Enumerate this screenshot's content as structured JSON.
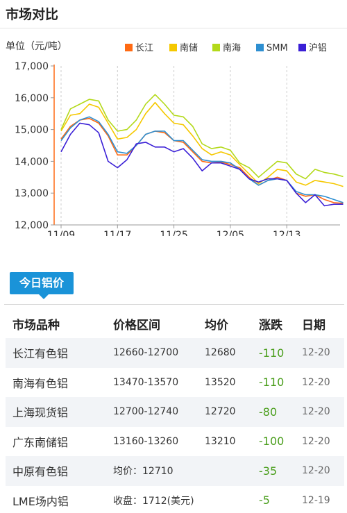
{
  "page": {
    "section_title": "市场对比",
    "today_tab": "今日铝价"
  },
  "chart_data": {
    "type": "line",
    "ylabel": "单位（元/吨）",
    "ylim": [
      12000,
      17000
    ],
    "yticks": [
      12000,
      13000,
      14000,
      15000,
      16000,
      17000
    ],
    "ytick_labels": [
      "12,000",
      "13,000",
      "14,000",
      "15,000",
      "16,000",
      "17,000"
    ],
    "x": [
      "11/09",
      "11/10",
      "11/11",
      "11/12",
      "11/13",
      "11/16",
      "11/17",
      "11/18",
      "11/19",
      "11/20",
      "11/23",
      "11/24",
      "11/25",
      "11/26",
      "11/27",
      "11/30",
      "12/01",
      "12/02",
      "12/03",
      "12/04",
      "12/07",
      "12/08",
      "12/09",
      "12/10",
      "12/11",
      "12/14",
      "12/15",
      "12/16",
      "12/17",
      "12/18",
      "12/19"
    ],
    "xtick_labels": [
      "11/09",
      "11/17",
      "11/25",
      "12/05",
      "12/13"
    ],
    "xtick_index": [
      0,
      6,
      12,
      18,
      24
    ],
    "legend_position": "top-right",
    "grid": "vertical dashed",
    "series": [
      {
        "name": "长江",
        "color": "#ff6a13",
        "values": [
          14700,
          15100,
          15300,
          15350,
          15200,
          14800,
          14200,
          14200,
          14500,
          14850,
          14950,
          14900,
          14650,
          14600,
          14300,
          14000,
          13950,
          13980,
          13900,
          13800,
          13500,
          13250,
          13400,
          13500,
          13400,
          13000,
          12900,
          12950,
          12800,
          12700,
          12680
        ]
      },
      {
        "name": "南储",
        "color": "#f5c800",
        "values": [
          14950,
          15450,
          15500,
          15800,
          15700,
          15200,
          14700,
          14750,
          15000,
          15500,
          15850,
          15500,
          15200,
          15150,
          14800,
          14400,
          14200,
          14300,
          14200,
          13900,
          13600,
          13300,
          13500,
          13750,
          13700,
          13350,
          13250,
          13400,
          13350,
          13300,
          13210
        ]
      },
      {
        "name": "南海",
        "color": "#b3d91a",
        "values": [
          15000,
          15650,
          15800,
          15950,
          15900,
          15300,
          14950,
          15000,
          15300,
          15800,
          16100,
          15800,
          15450,
          15400,
          15100,
          14550,
          14400,
          14450,
          14350,
          13950,
          13800,
          13500,
          13750,
          14000,
          13950,
          13600,
          13450,
          13750,
          13650,
          13600,
          13520
        ]
      },
      {
        "name": "SMM",
        "color": "#2e8fd1",
        "values": [
          14650,
          15050,
          15300,
          15400,
          15250,
          14850,
          14300,
          14250,
          14500,
          14850,
          14950,
          14950,
          14650,
          14650,
          14350,
          14050,
          14000,
          14000,
          13950,
          13750,
          13450,
          13250,
          13400,
          13450,
          13400,
          13050,
          12950,
          12950,
          12900,
          12800,
          12700
        ]
      },
      {
        "name": "沪铝",
        "color": "#3a1fd6",
        "values": [
          14300,
          14850,
          15200,
          15150,
          14900,
          14000,
          13800,
          14050,
          14550,
          14600,
          14450,
          14450,
          14300,
          14400,
          14100,
          13700,
          13950,
          13950,
          13850,
          13750,
          13450,
          13350,
          13450,
          13450,
          13400,
          13000,
          12700,
          12950,
          12600,
          12650,
          12650
        ]
      }
    ]
  },
  "table": {
    "headers": [
      "市场品种",
      "价格区间",
      "均价",
      "涨跌",
      "日期"
    ],
    "rows": [
      {
        "market": "长江有色铝",
        "range": "12660-12700",
        "avg": "12680",
        "change": "-110",
        "date": "12-20"
      },
      {
        "market": "南海有色铝",
        "range": "13470-13570",
        "avg": "13520",
        "change": "-110",
        "date": "12-20"
      },
      {
        "market": "上海现货铝",
        "range": "12700-12740",
        "avg": "12720",
        "change": "-80",
        "date": "12-20"
      },
      {
        "market": "广东南储铝",
        "range": "13160-13260",
        "avg": "13210",
        "change": "-100",
        "date": "12-20"
      },
      {
        "market": "中原有色铝",
        "range": "均价：12710",
        "avg": "",
        "change": "-35",
        "date": "12-20"
      },
      {
        "market": "LME场内铝",
        "range": "收盘：1712(美元)",
        "avg": "",
        "change": "-5",
        "date": "12-19"
      }
    ]
  }
}
